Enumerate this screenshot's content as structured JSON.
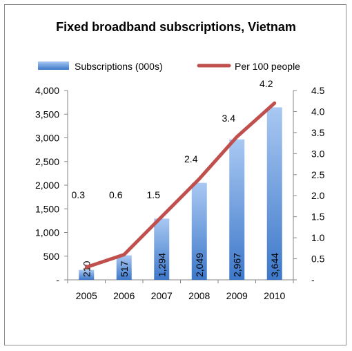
{
  "chart_data": {
    "type": "bar",
    "title": "Fixed broadband subscriptions, Vietnam",
    "categories": [
      "2005",
      "2006",
      "2007",
      "2008",
      "2009",
      "2010"
    ],
    "series": [
      {
        "name": "Subscriptions (000s)",
        "type": "bar",
        "axis": "left",
        "values": [
          210,
          517,
          1294,
          2049,
          2967,
          3644
        ],
        "labels": [
          "210",
          "517",
          "1,294",
          "2,049",
          "2,967",
          "3,644"
        ],
        "color": "#5b8fd6"
      },
      {
        "name": "Per 100 people",
        "type": "line",
        "axis": "right",
        "values": [
          0.3,
          0.6,
          1.5,
          2.4,
          3.4,
          4.2
        ],
        "labels": [
          "0.3",
          "0.6",
          "1.5",
          "2.4",
          "3.4",
          "4.2"
        ],
        "color": "#c0504d"
      }
    ],
    "left_axis": {
      "min": 0,
      "max": 4000,
      "ticks": [
        0,
        500,
        1000,
        1500,
        2000,
        2500,
        3000,
        3500,
        4000
      ],
      "tick_labels": [
        "-",
        "500",
        "1,000",
        "1,500",
        "2,000",
        "2,500",
        "3,000",
        "3,500",
        "4,000"
      ]
    },
    "right_axis": {
      "min": 0,
      "max": 4.5,
      "ticks": [
        0,
        0.5,
        1,
        1.5,
        2,
        2.5,
        3,
        3.5,
        4,
        4.5
      ],
      "tick_labels": [
        "-",
        "0.5",
        "1.0",
        "1.5",
        "2.0",
        "2.5",
        "3.0",
        "3.5",
        "4.0",
        "4.5"
      ]
    },
    "grid": false,
    "legend": "top"
  }
}
